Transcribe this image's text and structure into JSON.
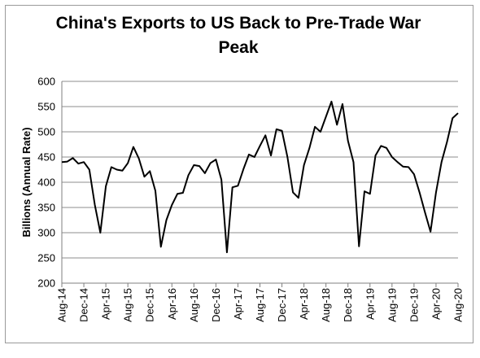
{
  "chart_data": {
    "type": "line",
    "title_line1": "China's Exports to US Back to Pre-Trade War",
    "title_line2": "Peak",
    "ylabel": "Billions (Annual Rate)",
    "xlabel": "",
    "ylim": [
      200,
      600
    ],
    "yticks": [
      200,
      250,
      300,
      350,
      400,
      450,
      500,
      550,
      600
    ],
    "xticks": [
      "Aug-14",
      "Dec-14",
      "Apr-15",
      "Aug-15",
      "Dec-15",
      "Apr-16",
      "Aug-16",
      "Dec-16",
      "Apr-17",
      "Aug-17",
      "Dec-17",
      "Apr-18",
      "Aug-18",
      "Dec-18",
      "Apr-19",
      "Aug-19",
      "Dec-19",
      "Apr-20",
      "Aug-20"
    ],
    "grid": "horizontal",
    "legend": "none",
    "line_color": "#000000",
    "x": [
      "Aug-14",
      "Sep-14",
      "Oct-14",
      "Nov-14",
      "Dec-14",
      "Jan-15",
      "Feb-15",
      "Mar-15",
      "Apr-15",
      "May-15",
      "Jun-15",
      "Jul-15",
      "Aug-15",
      "Sep-15",
      "Oct-15",
      "Nov-15",
      "Dec-15",
      "Jan-16",
      "Feb-16",
      "Mar-16",
      "Apr-16",
      "May-16",
      "Jun-16",
      "Jul-16",
      "Aug-16",
      "Sep-16",
      "Oct-16",
      "Nov-16",
      "Dec-16",
      "Jan-17",
      "Feb-17",
      "Mar-17",
      "Apr-17",
      "May-17",
      "Jun-17",
      "Jul-17",
      "Aug-17",
      "Sep-17",
      "Oct-17",
      "Nov-17",
      "Dec-17",
      "Jan-18",
      "Feb-18",
      "Mar-18",
      "Apr-18",
      "May-18",
      "Jun-18",
      "Jul-18",
      "Aug-18",
      "Sep-18",
      "Oct-18",
      "Nov-18",
      "Dec-18",
      "Jan-19",
      "Feb-19",
      "Mar-19",
      "Apr-19",
      "May-19",
      "Jun-19",
      "Jul-19",
      "Aug-19",
      "Sep-19",
      "Oct-19",
      "Nov-19",
      "Dec-19",
      "Jan-20",
      "Feb-20",
      "Mar-20",
      "Apr-20",
      "May-20",
      "Jun-20",
      "Jul-20",
      "Aug-20"
    ],
    "values": [
      440,
      441,
      448,
      437,
      440,
      425,
      355,
      300,
      392,
      430,
      425,
      423,
      438,
      470,
      447,
      411,
      422,
      383,
      272,
      325,
      355,
      377,
      379,
      414,
      434,
      432,
      418,
      438,
      445,
      405,
      261,
      390,
      393,
      426,
      455,
      450,
      472,
      493,
      453,
      505,
      502,
      450,
      380,
      369,
      434,
      468,
      510,
      500,
      530,
      560,
      514,
      555,
      482,
      440,
      273,
      382,
      377,
      453,
      472,
      468,
      450,
      440,
      431,
      430,
      416,
      380,
      340,
      302,
      380,
      440,
      480,
      527,
      537
    ]
  }
}
